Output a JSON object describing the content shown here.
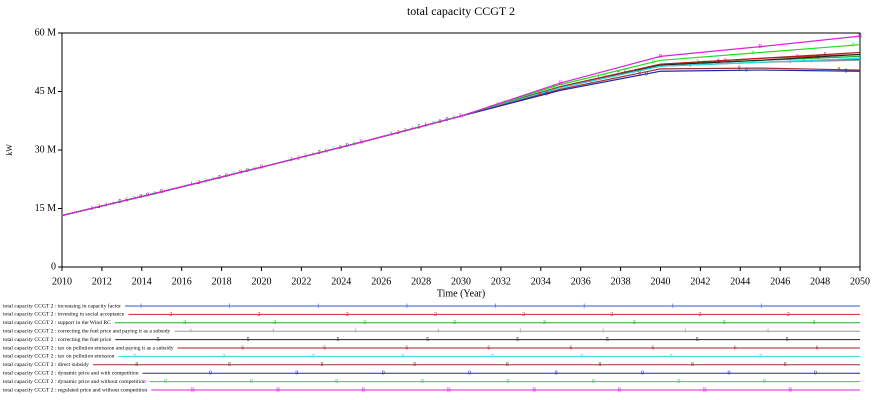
{
  "chart_data": {
    "type": "line",
    "title": "total capacity CCGT 2",
    "xlabel": "Time (Year)",
    "ylabel": "kW",
    "x": [
      2010,
      2015,
      2020,
      2025,
      2030,
      2035,
      2040,
      2045,
      2050
    ],
    "xlim": [
      2010,
      2050
    ],
    "xticks": [
      2010,
      2012,
      2014,
      2016,
      2018,
      2020,
      2022,
      2024,
      2026,
      2028,
      2030,
      2032,
      2034,
      2036,
      2038,
      2040,
      2042,
      2044,
      2046,
      2048,
      2050
    ],
    "ylim": [
      0,
      60000000
    ],
    "yticks": [
      0,
      {
        "value": 15000000,
        "label": "15 M"
      },
      {
        "value": 30000000,
        "label": "30 M"
      },
      {
        "value": 45000000,
        "label": "45 M"
      },
      {
        "value": 60000000,
        "label": "60 M"
      }
    ],
    "series": [
      {
        "name": "total capacity CCGT 2 : increasing in capacity factor",
        "marker": "1",
        "color": "#3355dd",
        "values": [
          13200000,
          19300000,
          25600000,
          32000000,
          38700000,
          46000000,
          51500000,
          52500000,
          53200000
        ]
      },
      {
        "name": "total capacity CCGT 2 : investing in social acceptance",
        "marker": "2",
        "color": "#dd2222",
        "values": [
          13200000,
          19300000,
          25600000,
          32000000,
          38700000,
          46300000,
          52000000,
          53500000,
          54500000
        ]
      },
      {
        "name": "total capacity CCGT 2 : support in the Wind RC",
        "marker": "3",
        "color": "#22aa22",
        "values": [
          13200000,
          19300000,
          25600000,
          32000000,
          38700000,
          46200000,
          52000000,
          53000000,
          54000000
        ]
      },
      {
        "name": "total capacity CCGT 2 : correcting the fuel price and paying it as a subsidy",
        "marker": "4",
        "color": "#999999",
        "values": [
          13200000,
          19300000,
          25600000,
          32000000,
          38700000,
          46000000,
          51500000,
          52500000,
          53000000
        ]
      },
      {
        "name": "total capacity CCGT 2 : correcting the fuel price",
        "marker": "5",
        "color": "#222222",
        "values": [
          13200000,
          19300000,
          25600000,
          32000000,
          38700000,
          46100000,
          51800000,
          53000000,
          54500000
        ]
      },
      {
        "name": "total capacity CCGT 2 : tax on pollution emission and paying it as a subsidy",
        "marker": "6",
        "color": "#aa2222",
        "values": [
          13200000,
          19300000,
          25600000,
          32000000,
          38700000,
          46200000,
          52000000,
          53500000,
          55000000
        ]
      },
      {
        "name": "total capacity CCGT 2 : tax on pollution emission",
        "marker": "7",
        "color": "#22dddd",
        "values": [
          13200000,
          19300000,
          25600000,
          32000000,
          38700000,
          46000000,
          51500000,
          52500000,
          53500000
        ]
      },
      {
        "name": "total capacity CCGT 2 : direct subsidy",
        "marker": "8",
        "color": "#993333",
        "values": [
          13200000,
          19300000,
          25600000,
          32000000,
          38700000,
          45600000,
          50800000,
          51000000,
          50500000
        ]
      },
      {
        "name": "total capacity CCGT 2 : dynamic price and with competition",
        "marker": "9",
        "color": "#2222aa",
        "values": [
          13200000,
          19300000,
          25600000,
          32000000,
          38700000,
          45300000,
          50200000,
          50500000,
          50200000
        ]
      },
      {
        "name": "total capacity CCGT 2 : dynamic price and without competition",
        "marker": "0",
        "color": "#22dd22",
        "values": [
          13200000,
          19300000,
          25600000,
          32000000,
          38700000,
          46800000,
          53000000,
          55000000,
          57000000
        ]
      },
      {
        "name": "total capacity CCGT 2 : regulated price and without competition",
        "marker": "B",
        "color": "#dd22dd",
        "values": [
          13200000,
          19300000,
          25600000,
          32000000,
          38700000,
          47200000,
          54000000,
          56500000,
          59200000
        ]
      }
    ]
  }
}
